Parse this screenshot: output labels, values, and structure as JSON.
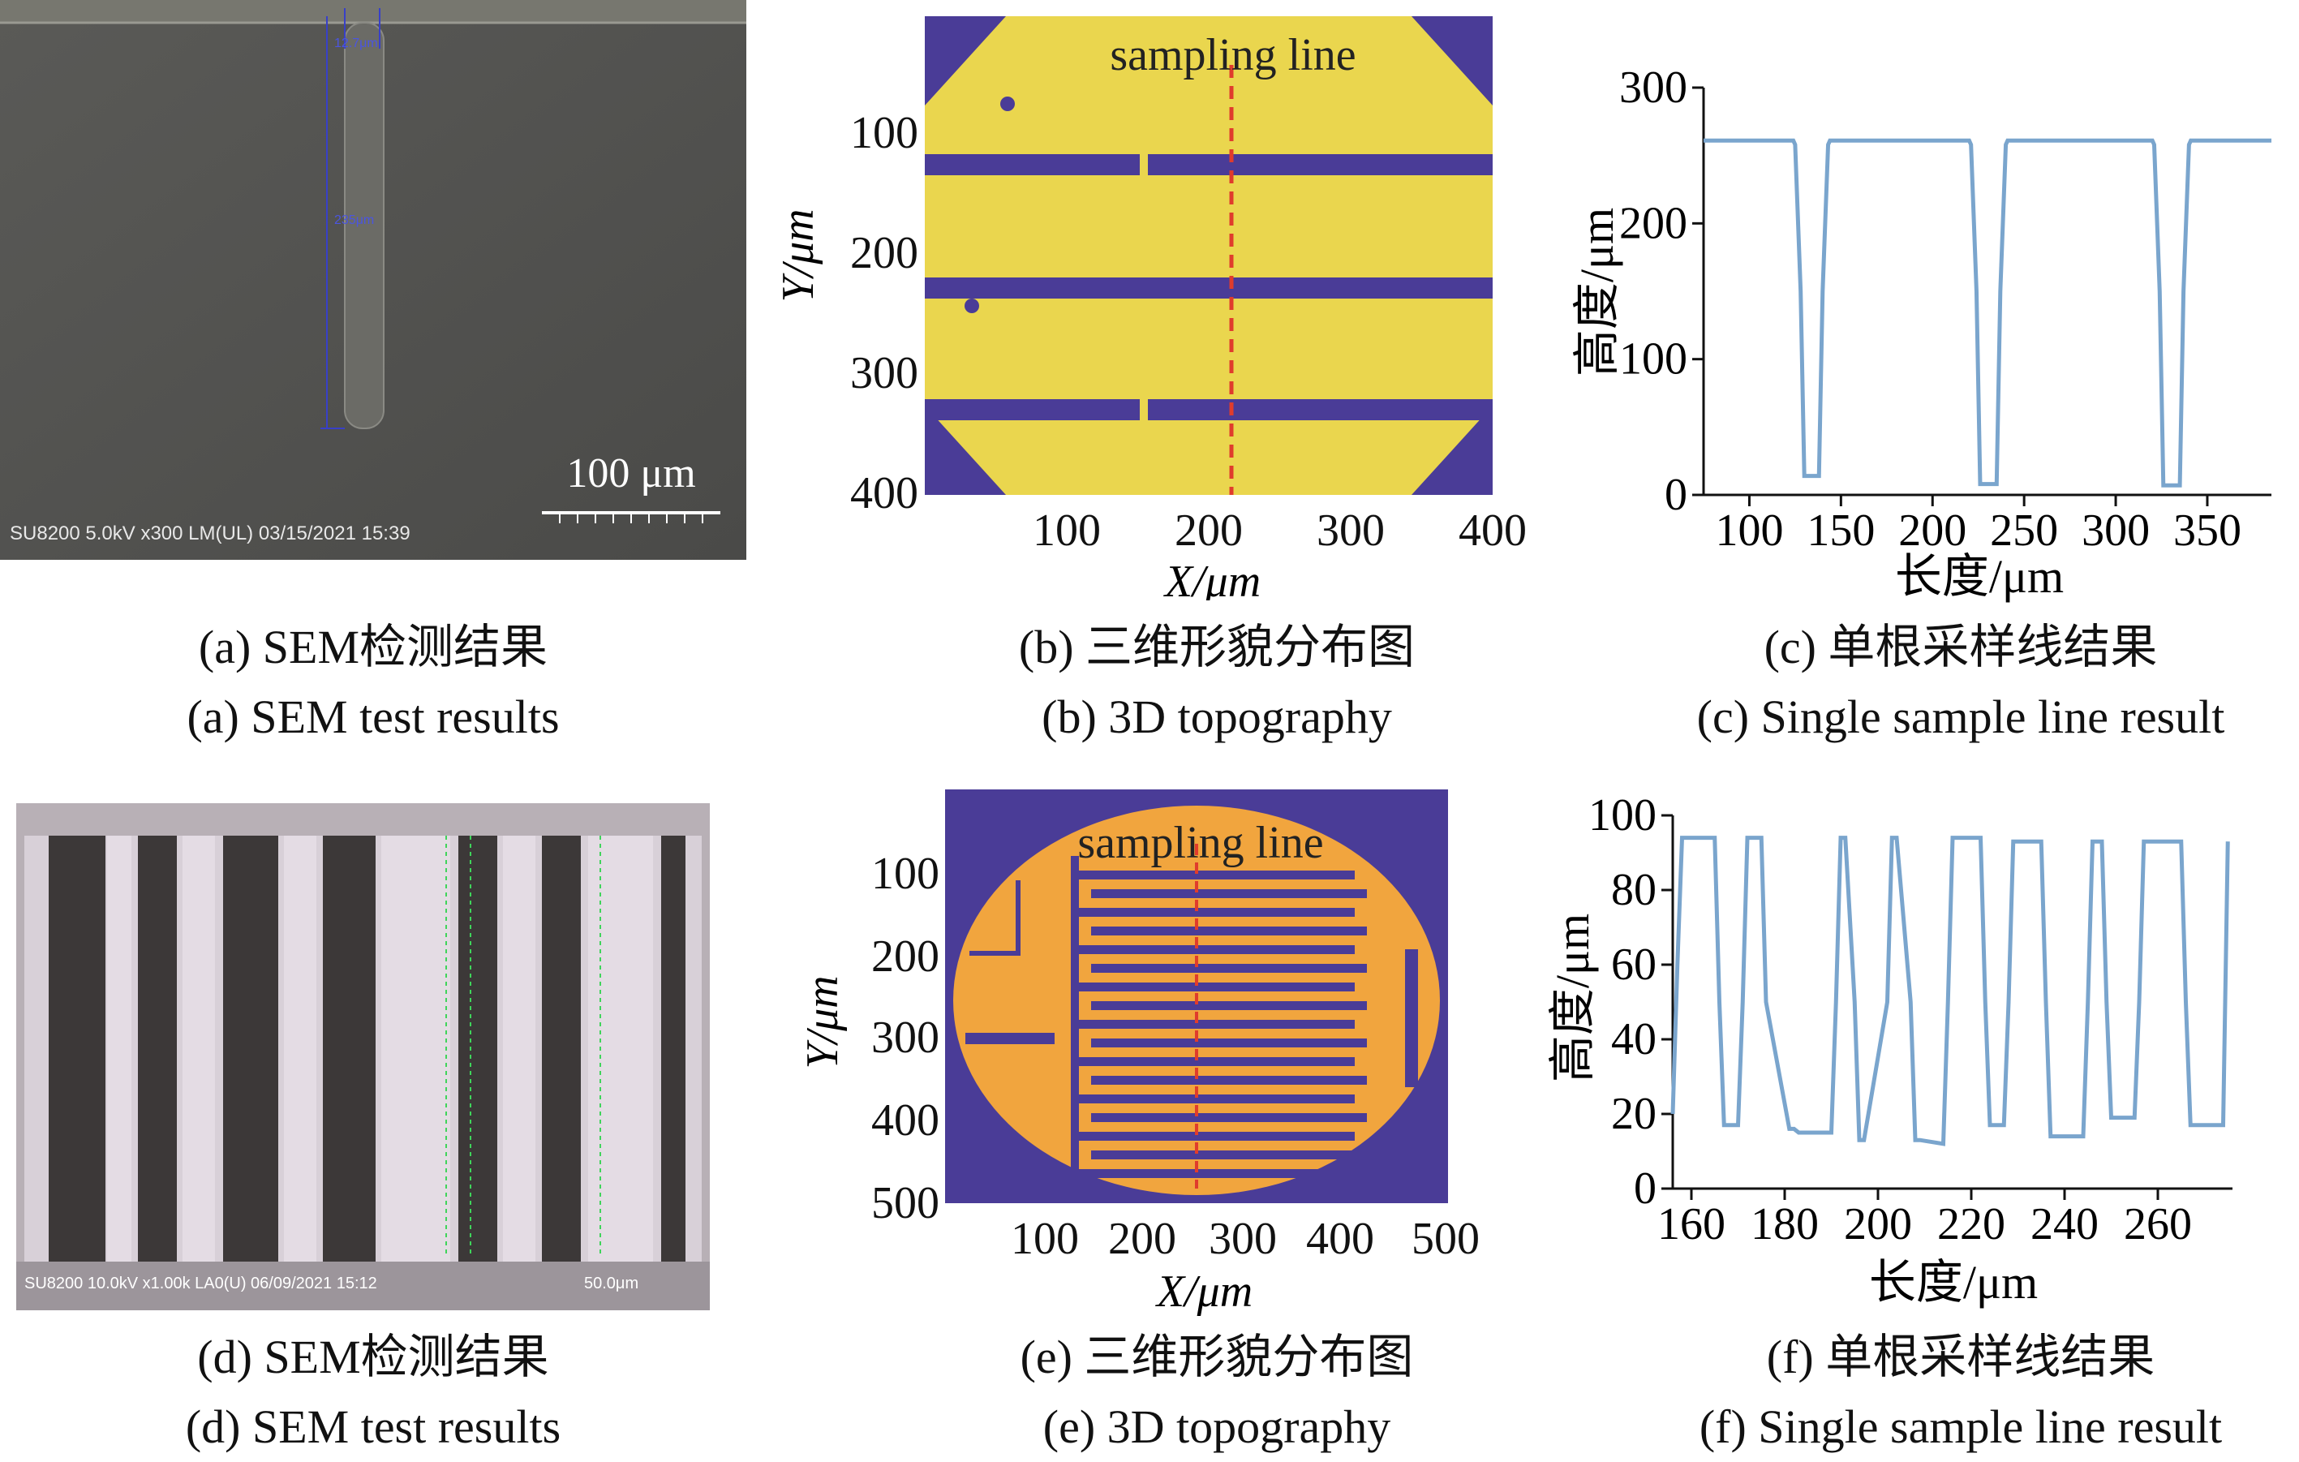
{
  "figure": {
    "panels": [
      {
        "id": "a",
        "caption_cn": "(a) SEM检测结果",
        "caption_en": "(a) SEM test results",
        "scale_bar": "100 μm",
        "footer": "SU8200 5.0kV x300 LM(UL) 03/15/2021 15:39",
        "measurements": [
          "12.7μm",
          "235μm"
        ]
      },
      {
        "id": "b",
        "caption_cn": "(b) 三维形貌分布图",
        "caption_en": "(b) 3D topography",
        "annotation": "sampling line"
      },
      {
        "id": "c",
        "caption_cn": "(c) 单根采样线结果",
        "caption_en": "(c) Single sample line result"
      },
      {
        "id": "d",
        "caption_cn": "(d) SEM检测结果",
        "caption_en": "(d) SEM test results",
        "footer": "SU8200 10.0kV x1.00k LA0(U) 06/09/2021 15:12",
        "scale_label": "50.0μm"
      },
      {
        "id": "e",
        "caption_cn": "(e) 三维形貌分布图",
        "caption_en": "(e) 3D topography",
        "annotation": "sampling line"
      },
      {
        "id": "f",
        "caption_cn": "(f) 单根采样线结果",
        "caption_en": "(f) Single sample line result"
      }
    ],
    "colors": {
      "map_yellow": "#ead64e",
      "map_blue": "#4a3c97",
      "map_orange": "#f1a53e",
      "line_blue": "#7aa5cd",
      "sampling_red": "#e03c2c"
    }
  },
  "chart_data": [
    {
      "panel": "b",
      "type": "heatmap",
      "xlabel": "X/μm",
      "ylabel": "Y/μm",
      "xticks": [
        "100",
        "200",
        "300",
        "400"
      ],
      "yticks": [
        "100",
        "200",
        "300",
        "400"
      ],
      "xlim": [
        0,
        400
      ],
      "ylim": [
        0,
        400
      ],
      "sampling_line_x": 220
    },
    {
      "panel": "c",
      "type": "line",
      "xlabel": "长度/μm",
      "ylabel": "高度/μm",
      "xticks": [
        "100",
        "150",
        "200",
        "250",
        "300",
        "350"
      ],
      "yticks": [
        "0",
        "100",
        "200",
        "300"
      ],
      "xlim": [
        75,
        385
      ],
      "ylim": [
        0,
        300
      ],
      "series": [
        {
          "x": [
            75,
            124,
            125,
            128,
            130,
            138,
            140,
            143,
            144,
            220,
            221,
            224,
            226,
            235,
            237,
            240,
            241,
            320,
            321,
            324,
            326,
            335,
            337,
            340,
            341,
            385
          ],
          "y": [
            261,
            261,
            258,
            150,
            14,
            14,
            150,
            258,
            261,
            261,
            258,
            150,
            8,
            8,
            150,
            258,
            261,
            261,
            258,
            150,
            7,
            7,
            150,
            258,
            261,
            261
          ]
        }
      ]
    },
    {
      "panel": "e",
      "type": "heatmap",
      "xlabel": "X/μm",
      "ylabel": "Y/μm",
      "xticks": [
        "100",
        "200",
        "300",
        "400",
        "500"
      ],
      "yticks": [
        "100",
        "200",
        "300",
        "400",
        "500"
      ],
      "xlim": [
        0,
        500
      ],
      "ylim": [
        0,
        500
      ],
      "sampling_line_x": 250
    },
    {
      "panel": "f",
      "type": "line",
      "xlabel": "长度/μm",
      "ylabel": "高度/μm",
      "xticks": [
        "160",
        "180",
        "200",
        "220",
        "240",
        "260"
      ],
      "yticks": [
        "0",
        "20",
        "40",
        "60",
        "80",
        "100"
      ],
      "xlim": [
        156,
        276
      ],
      "ylim": [
        0,
        100
      ],
      "series": [
        {
          "x": [
            156,
            157,
            158,
            165,
            166,
            167,
            170,
            171,
            172,
            175,
            176,
            181,
            182,
            183,
            190,
            191,
            192,
            193,
            195,
            196,
            197,
            202,
            203,
            204,
            207,
            208,
            209,
            214,
            215,
            216,
            222,
            223,
            224,
            227,
            228,
            229,
            235,
            236,
            237,
            244,
            245,
            246,
            248,
            249,
            250,
            255,
            256,
            257,
            265,
            266,
            267,
            274,
            275
          ],
          "y": [
            20,
            60,
            94,
            94,
            50,
            17,
            17,
            50,
            94,
            94,
            50,
            16,
            16,
            15,
            15,
            50,
            94,
            94,
            50,
            13,
            13,
            50,
            94,
            94,
            50,
            13,
            13,
            12,
            50,
            94,
            94,
            50,
            17,
            17,
            50,
            93,
            93,
            50,
            14,
            14,
            50,
            93,
            93,
            50,
            19,
            19,
            50,
            93,
            93,
            50,
            17,
            17,
            93
          ]
        }
      ]
    }
  ]
}
